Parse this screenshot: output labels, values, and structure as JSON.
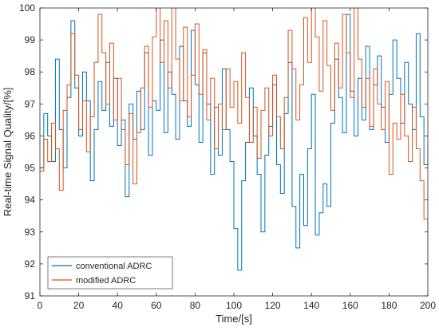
{
  "chart_data": {
    "type": "line",
    "line_style": "step",
    "xlabel": "Time/[s]",
    "ylabel": "Real-time Signal Quality/[%]",
    "xlim": [
      0,
      200
    ],
    "ylim": [
      91,
      100
    ],
    "xticks": [
      "0",
      "20",
      "40",
      "60",
      "80",
      "100",
      "120",
      "140",
      "160",
      "180",
      "200"
    ],
    "yticks": [
      "91",
      "92",
      "93",
      "94",
      "95",
      "96",
      "97",
      "98",
      "99",
      "100"
    ],
    "grid": false,
    "legend_position": "bottom-left",
    "series": [
      {
        "name": "conventional ADRC",
        "color": "#0072BD",
        "x": [
          0,
          2,
          4,
          6,
          8,
          10,
          12,
          14,
          16,
          18,
          20,
          22,
          24,
          26,
          28,
          30,
          32,
          34,
          36,
          38,
          40,
          42,
          44,
          46,
          48,
          50,
          52,
          54,
          56,
          58,
          60,
          62,
          64,
          66,
          68,
          70,
          72,
          74,
          76,
          78,
          80,
          82,
          84,
          86,
          88,
          90,
          92,
          94,
          96,
          98,
          100,
          102,
          104,
          106,
          108,
          110,
          112,
          114,
          116,
          118,
          120,
          122,
          124,
          126,
          128,
          130,
          132,
          134,
          136,
          138,
          140,
          142,
          144,
          146,
          148,
          150,
          152,
          154,
          156,
          158,
          160,
          162,
          164,
          166,
          168,
          170,
          172,
          174,
          176,
          178,
          180,
          182,
          184,
          186,
          188,
          190,
          192,
          194,
          196,
          198,
          200
        ],
        "y": [
          95.0,
          96.7,
          96.0,
          95.2,
          98.4,
          96.2,
          95.0,
          97.2,
          99.6,
          97.5,
          96.0,
          98.0,
          97.1,
          94.6,
          96.2,
          97.7,
          96.8,
          98.3,
          96.3,
          97.8,
          95.7,
          96.5,
          94.1,
          97.0,
          95.9,
          97.4,
          96.2,
          98.6,
          95.4,
          97.1,
          96.8,
          99.0,
          96.1,
          98.0,
          97.3,
          95.9,
          98.8,
          97.1,
          96.3,
          99.3,
          97.6,
          95.8,
          98.6,
          97.0,
          94.8,
          96.9,
          95.4,
          98.1,
          96.2,
          95.2,
          93.1,
          91.8,
          94.6,
          95.8,
          97.5,
          96.0,
          94.8,
          93.0,
          95.4,
          96.3,
          97.6,
          95.1,
          94.2,
          96.7,
          98.3,
          93.8,
          92.5,
          94.8,
          93.2,
          95.6,
          97.3,
          92.9,
          93.6,
          94.5,
          93.8,
          96.4,
          98.4,
          97.2,
          96.1,
          99.8,
          97.4,
          96.0,
          97.8,
          96.5,
          98.8,
          96.2,
          97.6,
          98.5,
          96.9,
          95.8,
          97.3,
          99.0,
          97.8,
          96.4,
          98.3,
          97.0,
          96.2,
          99.2,
          96.6,
          95.1,
          95.8
        ]
      },
      {
        "name": "modified ADRC",
        "color": "#D95319",
        "x": [
          0,
          2,
          4,
          6,
          8,
          10,
          12,
          14,
          16,
          18,
          20,
          22,
          24,
          26,
          28,
          30,
          32,
          34,
          36,
          38,
          40,
          42,
          44,
          46,
          48,
          50,
          52,
          54,
          56,
          58,
          60,
          62,
          64,
          66,
          68,
          70,
          72,
          74,
          76,
          78,
          80,
          82,
          84,
          86,
          88,
          90,
          92,
          94,
          96,
          98,
          100,
          102,
          104,
          106,
          108,
          110,
          112,
          114,
          116,
          118,
          120,
          122,
          124,
          126,
          128,
          130,
          132,
          134,
          136,
          138,
          140,
          142,
          144,
          146,
          148,
          150,
          152,
          154,
          156,
          158,
          160,
          162,
          164,
          166,
          168,
          170,
          172,
          174,
          176,
          178,
          180,
          182,
          184,
          186,
          188,
          190,
          192,
          194,
          196,
          198,
          200
        ],
        "y": [
          94.9,
          95.9,
          95.2,
          96.4,
          95.6,
          94.3,
          96.8,
          97.6,
          99.2,
          97.9,
          96.2,
          97.1,
          95.5,
          96.6,
          98.3,
          99.8,
          98.6,
          97.0,
          98.9,
          96.5,
          97.8,
          96.2,
          95.1,
          96.7,
          94.5,
          96.1,
          97.5,
          98.8,
          96.9,
          99.1,
          100.0,
          98.3,
          99.6,
          97.5,
          100.0,
          98.4,
          97.1,
          99.4,
          96.6,
          97.9,
          99.5,
          97.3,
          98.7,
          96.5,
          97.8,
          95.6,
          97.0,
          96.2,
          98.1,
          96.9,
          97.7,
          96.4,
          98.6,
          97.2,
          95.8,
          96.9,
          95.3,
          96.8,
          97.5,
          96.0,
          97.9,
          96.6,
          95.6,
          97.2,
          99.3,
          98.1,
          96.5,
          97.6,
          99.7,
          98.3,
          100.0,
          99.1,
          97.4,
          99.6,
          98.2,
          96.8,
          98.9,
          97.5,
          99.8,
          98.6,
          97.2,
          100.0,
          98.4,
          96.9,
          97.8,
          96.3,
          98.1,
          97.0,
          96.2,
          97.7,
          94.8,
          96.4,
          95.9,
          97.3,
          96.0,
          95.2,
          96.9,
          95.6,
          94.6,
          93.4,
          91.7
        ]
      }
    ]
  }
}
